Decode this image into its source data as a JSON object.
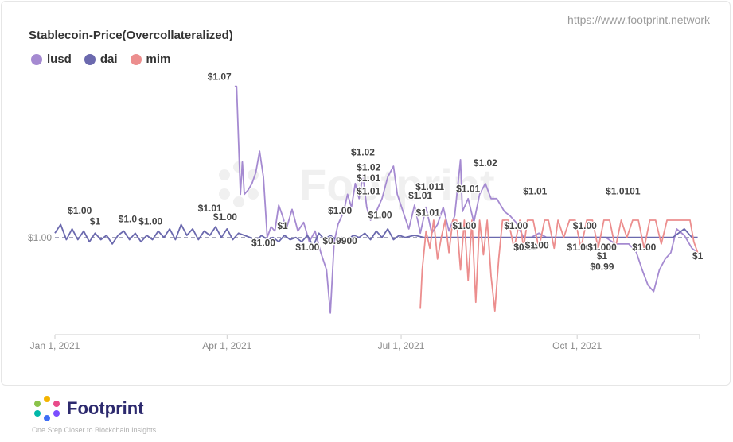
{
  "header": {
    "site_url": "https://www.footprint.network"
  },
  "watermark": {
    "text": "Footprint"
  },
  "footer": {
    "brand": "Footprint",
    "tagline": "One Step Closer to Blockchain Insights"
  },
  "colors": {
    "lusd": "#a58ad1",
    "dai": "#6b69ae",
    "mim": "#ec8e8e"
  },
  "chart_data": {
    "type": "line",
    "title": "Stablecoin-Price(Overcollateralized)",
    "xlabel": "",
    "ylabel": "",
    "x_ticks": [
      "Jan 1, 2021",
      "Apr 1, 2021",
      "Jul 1, 2021",
      "Oct 1, 2021"
    ],
    "x_range": [
      "2021-01-01",
      "2021-12-04"
    ],
    "ylim": [
      0.955,
      1.075
    ],
    "y_ticks": [
      "$1.00"
    ],
    "grid": false,
    "legend_position": "top-left",
    "series": [
      {
        "name": "lusd",
        "color": "#a58ad1",
        "points": [
          [
            "2021-04-05",
            1.07
          ],
          [
            "2021-04-06",
            1.07
          ],
          [
            "2021-04-07",
            1.045
          ],
          [
            "2021-04-08",
            1.02
          ],
          [
            "2021-04-09",
            1.035
          ],
          [
            "2021-04-10",
            1.02
          ],
          [
            "2021-04-12",
            1.022
          ],
          [
            "2021-04-14",
            1.025
          ],
          [
            "2021-04-16",
            1.03
          ],
          [
            "2021-04-18",
            1.04
          ],
          [
            "2021-04-20",
            1.028
          ],
          [
            "2021-04-22",
            1.0
          ],
          [
            "2021-04-24",
            1.005
          ],
          [
            "2021-04-26",
            1.003
          ],
          [
            "2021-04-28",
            1.015
          ],
          [
            "2021-04-30",
            1.01
          ],
          [
            "2021-05-02",
            1.004
          ],
          [
            "2021-05-05",
            1.013
          ],
          [
            "2021-05-08",
            1.003
          ],
          [
            "2021-05-11",
            1.007
          ],
          [
            "2021-05-14",
            0.998
          ],
          [
            "2021-05-17",
            1.003
          ],
          [
            "2021-05-20",
            0.993
          ],
          [
            "2021-05-23",
            0.985
          ],
          [
            "2021-05-25",
            0.965
          ],
          [
            "2021-05-27",
            0.998
          ],
          [
            "2021-05-29",
            1.006
          ],
          [
            "2021-06-01",
            1.012
          ],
          [
            "2021-06-03",
            1.02
          ],
          [
            "2021-06-05",
            1.014
          ],
          [
            "2021-06-07",
            1.025
          ],
          [
            "2021-06-09",
            1.018
          ],
          [
            "2021-06-11",
            1.029
          ],
          [
            "2021-06-13",
            1.014
          ],
          [
            "2021-06-15",
            1.008
          ],
          [
            "2021-06-18",
            1.012
          ],
          [
            "2021-06-21",
            1.018
          ],
          [
            "2021-06-24",
            1.028
          ],
          [
            "2021-06-27",
            1.033
          ],
          [
            "2021-06-29",
            1.02
          ],
          [
            "2021-07-02",
            1.012
          ],
          [
            "2021-07-05",
            1.004
          ],
          [
            "2021-07-08",
            1.015
          ],
          [
            "2021-07-11",
            1.002
          ],
          [
            "2021-07-14",
            1.014
          ],
          [
            "2021-07-17",
            1.002
          ],
          [
            "2021-07-20",
            1.006
          ],
          [
            "2021-07-23",
            1.014
          ],
          [
            "2021-07-26",
            1.003
          ],
          [
            "2021-07-29",
            1.01
          ],
          [
            "2021-08-01",
            1.036
          ],
          [
            "2021-08-02",
            1.012
          ],
          [
            "2021-08-05",
            1.018
          ],
          [
            "2021-08-08",
            1.007
          ],
          [
            "2021-08-11",
            1.02
          ],
          [
            "2021-08-14",
            1.025
          ],
          [
            "2021-08-17",
            1.018
          ],
          [
            "2021-08-20",
            1.018
          ],
          [
            "2021-08-24",
            1.012
          ],
          [
            "2021-08-27",
            1.01
          ],
          [
            "2021-08-30",
            1.007
          ],
          [
            "2021-09-03",
            1.0
          ],
          [
            "2021-09-07",
            1.0
          ],
          [
            "2021-09-11",
            1.002
          ],
          [
            "2021-09-15",
            1.0
          ],
          [
            "2021-09-20",
            1.0
          ],
          [
            "2021-09-25",
            1.0
          ],
          [
            "2021-10-01",
            1.0
          ],
          [
            "2021-10-06",
            1.0
          ],
          [
            "2021-10-11",
            1.0
          ],
          [
            "2021-10-16",
            1.0
          ],
          [
            "2021-10-21",
            0.997
          ],
          [
            "2021-10-25",
            0.997
          ],
          [
            "2021-10-28",
            0.997
          ],
          [
            "2021-11-01",
            0.993
          ],
          [
            "2021-11-04",
            0.985
          ],
          [
            "2021-11-07",
            0.978
          ],
          [
            "2021-11-10",
            0.975
          ],
          [
            "2021-11-13",
            0.985
          ],
          [
            "2021-11-16",
            0.99
          ],
          [
            "2021-11-19",
            0.993
          ],
          [
            "2021-11-22",
            1.004
          ],
          [
            "2021-11-26",
            1.001
          ],
          [
            "2021-11-30",
            0.995
          ],
          [
            "2021-12-03",
            0.993
          ]
        ]
      },
      {
        "name": "dai",
        "color": "#6b69ae",
        "points": [
          [
            "2021-01-01",
            1.002
          ],
          [
            "2021-01-04",
            1.006
          ],
          [
            "2021-01-07",
            0.999
          ],
          [
            "2021-01-10",
            1.004
          ],
          [
            "2021-01-13",
            0.999
          ],
          [
            "2021-01-16",
            1.003
          ],
          [
            "2021-01-19",
            0.998
          ],
          [
            "2021-01-22",
            1.002
          ],
          [
            "2021-01-25",
            0.999
          ],
          [
            "2021-01-28",
            1.001
          ],
          [
            "2021-01-31",
            0.997
          ],
          [
            "2021-02-03",
            1.001
          ],
          [
            "2021-02-06",
            1.003
          ],
          [
            "2021-02-09",
            0.999
          ],
          [
            "2021-02-12",
            1.002
          ],
          [
            "2021-02-15",
            0.998
          ],
          [
            "2021-02-18",
            1.001
          ],
          [
            "2021-02-21",
            0.999
          ],
          [
            "2021-02-24",
            1.003
          ],
          [
            "2021-02-27",
            1.0
          ],
          [
            "2021-03-02",
            1.004
          ],
          [
            "2021-03-05",
            0.999
          ],
          [
            "2021-03-08",
            1.006
          ],
          [
            "2021-03-11",
            1.001
          ],
          [
            "2021-03-14",
            1.004
          ],
          [
            "2021-03-17",
            0.999
          ],
          [
            "2021-03-20",
            1.003
          ],
          [
            "2021-03-23",
            1.001
          ],
          [
            "2021-03-26",
            1.005
          ],
          [
            "2021-03-29",
            1.0
          ],
          [
            "2021-04-01",
            1.004
          ],
          [
            "2021-04-04",
            0.999
          ],
          [
            "2021-04-07",
            1.002
          ],
          [
            "2021-04-10",
            1.001
          ],
          [
            "2021-04-13",
            1.0
          ],
          [
            "2021-04-16",
            0.998
          ],
          [
            "2021-04-19",
            1.001
          ],
          [
            "2021-04-22",
            0.999
          ],
          [
            "2021-04-25",
            1.0
          ],
          [
            "2021-04-28",
            0.998
          ],
          [
            "2021-05-01",
            1.001
          ],
          [
            "2021-05-04",
            0.999
          ],
          [
            "2021-05-07",
            1.0
          ],
          [
            "2021-05-10",
            0.998
          ],
          [
            "2021-05-13",
            1.001
          ],
          [
            "2021-05-16",
            0.996
          ],
          [
            "2021-05-19",
            1.002
          ],
          [
            "2021-05-22",
            0.999
          ],
          [
            "2021-05-25",
            1.001
          ],
          [
            "2021-05-28",
            0.999
          ],
          [
            "2021-05-31",
            1.0
          ],
          [
            "2021-06-03",
            0.999
          ],
          [
            "2021-06-06",
            1.001
          ],
          [
            "2021-06-09",
            1.0
          ],
          [
            "2021-06-12",
            1.002
          ],
          [
            "2021-06-15",
            0.999
          ],
          [
            "2021-06-18",
            1.003
          ],
          [
            "2021-06-21",
            1.0
          ],
          [
            "2021-06-24",
            1.004
          ],
          [
            "2021-06-27",
            0.999
          ],
          [
            "2021-06-30",
            1.001
          ],
          [
            "2021-07-03",
            1.0
          ],
          [
            "2021-07-08",
            1.001
          ],
          [
            "2021-07-13",
            1.0
          ],
          [
            "2021-07-18",
            1.0
          ],
          [
            "2021-07-23",
            1.0
          ],
          [
            "2021-07-28",
            1.0
          ],
          [
            "2021-08-02",
            1.0
          ],
          [
            "2021-08-10",
            1.0
          ],
          [
            "2021-08-20",
            1.0
          ],
          [
            "2021-08-30",
            1.0
          ],
          [
            "2021-09-10",
            1.0
          ],
          [
            "2021-09-20",
            1.0
          ],
          [
            "2021-10-01",
            1.0
          ],
          [
            "2021-10-10",
            1.0
          ],
          [
            "2021-10-20",
            1.0
          ],
          [
            "2021-11-01",
            1.0
          ],
          [
            "2021-11-10",
            1.0
          ],
          [
            "2021-11-20",
            1.0
          ],
          [
            "2021-11-26",
            1.004
          ],
          [
            "2021-11-30",
            1.0
          ],
          [
            "2021-12-03",
            1.0
          ]
        ]
      },
      {
        "name": "mim",
        "color": "#ec8e8e",
        "points": [
          [
            "2021-07-11",
            0.967
          ],
          [
            "2021-07-12",
            0.985
          ],
          [
            "2021-07-14",
            1.003
          ],
          [
            "2021-07-16",
            0.995
          ],
          [
            "2021-07-18",
            1.008
          ],
          [
            "2021-07-20",
            0.99
          ],
          [
            "2021-07-22",
            1.0
          ],
          [
            "2021-07-24",
            1.008
          ],
          [
            "2021-07-26",
            0.993
          ],
          [
            "2021-07-28",
            1.008
          ],
          [
            "2021-07-30",
            1.008
          ],
          [
            "2021-08-01",
            0.985
          ],
          [
            "2021-08-03",
            1.008
          ],
          [
            "2021-08-05",
            0.98
          ],
          [
            "2021-08-07",
            1.008
          ],
          [
            "2021-08-09",
            0.97
          ],
          [
            "2021-08-11",
            1.008
          ],
          [
            "2021-08-13",
            0.992
          ],
          [
            "2021-08-15",
            1.008
          ],
          [
            "2021-08-17",
            0.982
          ],
          [
            "2021-08-19",
            0.966
          ],
          [
            "2021-08-21",
            0.99
          ],
          [
            "2021-08-23",
            1.008
          ],
          [
            "2021-08-26",
            1.008
          ],
          [
            "2021-08-29",
            0.995
          ],
          [
            "2021-09-01",
            1.008
          ],
          [
            "2021-09-03",
            0.995
          ],
          [
            "2021-09-05",
            1.008
          ],
          [
            "2021-09-08",
            1.008
          ],
          [
            "2021-09-11",
            0.995
          ],
          [
            "2021-09-14",
            1.008
          ],
          [
            "2021-09-16",
            1.008
          ],
          [
            "2021-09-19",
            0.995
          ],
          [
            "2021-09-21",
            1.008
          ],
          [
            "2021-09-24",
            1.0
          ],
          [
            "2021-09-27",
            1.008
          ],
          [
            "2021-09-30",
            1.008
          ],
          [
            "2021-10-03",
            0.995
          ],
          [
            "2021-10-06",
            1.008
          ],
          [
            "2021-10-09",
            1.008
          ],
          [
            "2021-10-12",
            0.995
          ],
          [
            "2021-10-15",
            1.008
          ],
          [
            "2021-10-18",
            1.008
          ],
          [
            "2021-10-21",
            0.995
          ],
          [
            "2021-10-24",
            1.008
          ],
          [
            "2021-10-27",
            1.0
          ],
          [
            "2021-10-30",
            1.008
          ],
          [
            "2021-11-02",
            1.008
          ],
          [
            "2021-11-05",
            0.995
          ],
          [
            "2021-11-08",
            1.008
          ],
          [
            "2021-11-11",
            1.008
          ],
          [
            "2021-11-14",
            0.997
          ],
          [
            "2021-11-17",
            1.008
          ],
          [
            "2021-11-20",
            1.008
          ],
          [
            "2021-11-23",
            1.008
          ],
          [
            "2021-11-26",
            1.008
          ],
          [
            "2021-11-29",
            1.008
          ],
          [
            "2021-12-01",
            0.998
          ],
          [
            "2021-12-03",
            0.993
          ]
        ]
      }
    ],
    "data_labels": [
      {
        "text": "$1.07",
        "x": "2021-03-28",
        "y": 1.073
      },
      {
        "text": "$1.00",
        "x": "2021-01-14",
        "y": 1.011
      },
      {
        "text": "$1",
        "x": "2021-01-22",
        "y": 1.006
      },
      {
        "text": "$1.0",
        "x": "2021-02-08",
        "y": 1.007
      },
      {
        "text": "$1.00",
        "x": "2021-02-20",
        "y": 1.006
      },
      {
        "text": "$1.01",
        "x": "2021-03-23",
        "y": 1.012
      },
      {
        "text": "$1.00",
        "x": "2021-03-31",
        "y": 1.008
      },
      {
        "text": "$1.00",
        "x": "2021-04-20",
        "y": 0.996
      },
      {
        "text": "$1",
        "x": "2021-04-30",
        "y": 1.004
      },
      {
        "text": "$1.00",
        "x": "2021-05-13",
        "y": 0.994
      },
      {
        "text": "$0.9900",
        "x": "2021-05-30",
        "y": 0.997
      },
      {
        "text": "$1.00",
        "x": "2021-05-30",
        "y": 1.011
      },
      {
        "text": "$1.02",
        "x": "2021-06-11",
        "y": 1.038
      },
      {
        "text": "$1.02",
        "x": "2021-06-14",
        "y": 1.031
      },
      {
        "text": "$1.01",
        "x": "2021-06-14",
        "y": 1.026
      },
      {
        "text": "$1.01",
        "x": "2021-06-14",
        "y": 1.02
      },
      {
        "text": "$1.00",
        "x": "2021-06-20",
        "y": 1.009
      },
      {
        "text": "$1.01",
        "x": "2021-07-11",
        "y": 1.018
      },
      {
        "text": "$1.011",
        "x": "2021-07-16",
        "y": 1.022
      },
      {
        "text": "$1.01",
        "x": "2021-07-15",
        "y": 1.01
      },
      {
        "text": "$1.00",
        "x": "2021-08-03",
        "y": 1.004
      },
      {
        "text": "$1.01",
        "x": "2021-08-05",
        "y": 1.021
      },
      {
        "text": "$1.02",
        "x": "2021-08-14",
        "y": 1.033
      },
      {
        "text": "$1.00",
        "x": "2021-08-30",
        "y": 1.004
      },
      {
        "text": "$0.99",
        "x": "2021-09-04",
        "y": 0.994
      },
      {
        "text": "$1.00",
        "x": "2021-09-10",
        "y": 0.995
      },
      {
        "text": "$1.01",
        "x": "2021-09-09",
        "y": 1.02
      },
      {
        "text": "$1.00",
        "x": "2021-10-05",
        "y": 1.004
      },
      {
        "text": "$1.00",
        "x": "2021-10-02",
        "y": 0.994
      },
      {
        "text": "$1.000",
        "x": "2021-10-14",
        "y": 0.994
      },
      {
        "text": "$1.0101",
        "x": "2021-10-25",
        "y": 1.02
      },
      {
        "text": "$1",
        "x": "2021-10-14",
        "y": 0.99
      },
      {
        "text": "$0.99",
        "x": "2021-10-14",
        "y": 0.985
      },
      {
        "text": "$1.00",
        "x": "2021-11-05",
        "y": 0.994
      },
      {
        "text": "$1",
        "x": "2021-12-03",
        "y": 0.99
      }
    ]
  }
}
